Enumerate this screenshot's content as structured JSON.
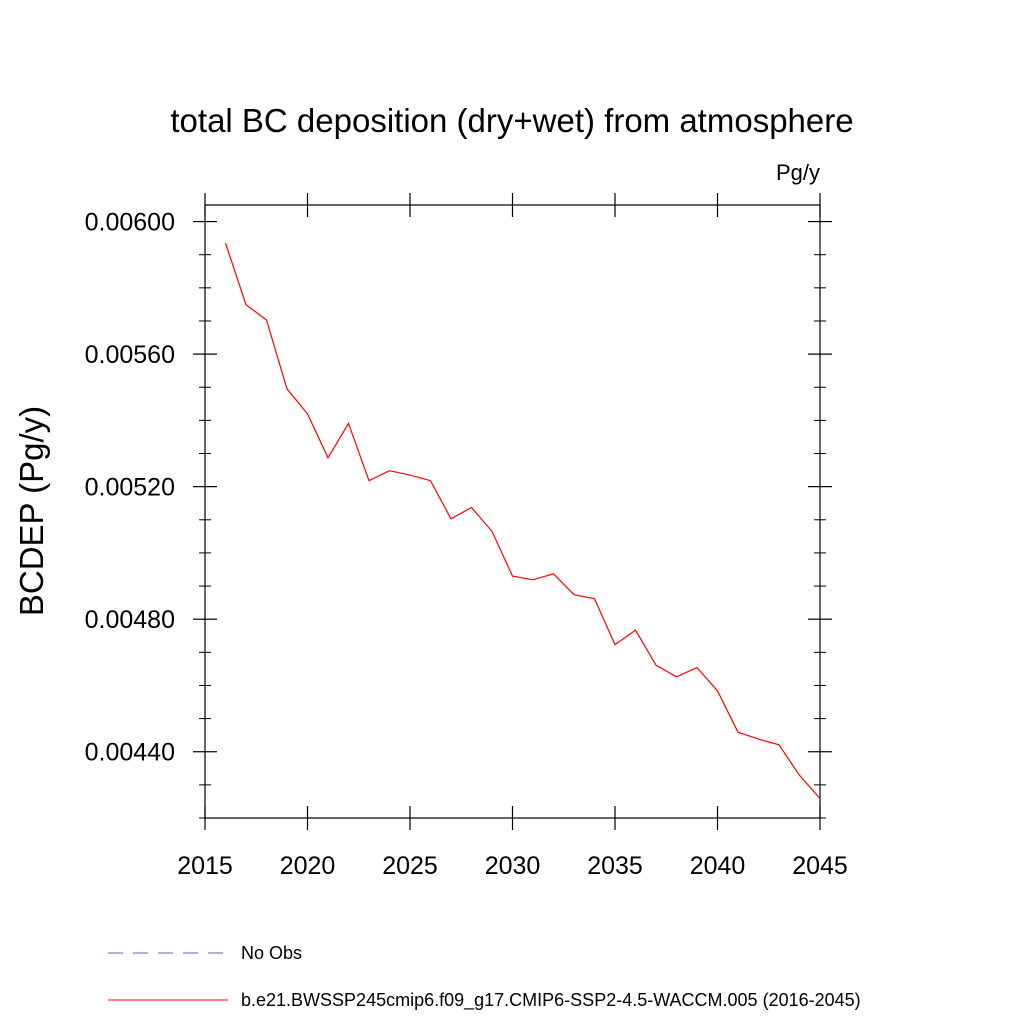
{
  "chart_data": {
    "type": "line",
    "title": "total BC deposition (dry+wet) from atmosphere",
    "units": "Pg/y",
    "xlabel": "",
    "ylabel": "BCDEP  (Pg/y)",
    "xlim": [
      2015,
      2045
    ],
    "ylim": [
      0.0042,
      0.00605
    ],
    "x_ticks": [
      2015,
      2020,
      2025,
      2030,
      2035,
      2040,
      2045
    ],
    "x_tick_labels": [
      "2015",
      "2020",
      "2025",
      "2030",
      "2035",
      "2040",
      "2045"
    ],
    "y_ticks": [
      0.0044,
      0.0048,
      0.0052,
      0.0056,
      0.006
    ],
    "y_tick_labels": [
      "0.00440",
      "0.00480",
      "0.00520",
      "0.00560",
      "0.00600"
    ],
    "grid": false,
    "legend_position": "bottom",
    "x": [
      2016,
      2017,
      2018,
      2019,
      2020,
      2021,
      2022,
      2023,
      2024,
      2025,
      2026,
      2027,
      2028,
      2029,
      2030,
      2031,
      2032,
      2033,
      2034,
      2035,
      2036,
      2037,
      2038,
      2039,
      2040,
      2041,
      2042,
      2043,
      2044,
      2045
    ],
    "series": [
      {
        "name": "b.e21.BWSSP245cmip6.f09_g17.CMIP6-SSP2-4.5-WACCM.005 (2016-2045)",
        "color": "#ff0000",
        "style": "solid",
        "values": [
          0.005935,
          0.005749,
          0.005703,
          0.005495,
          0.00542,
          0.005287,
          0.005391,
          0.005218,
          0.005248,
          0.005235,
          0.005218,
          0.005103,
          0.005137,
          0.005065,
          0.00493,
          0.004919,
          0.004937,
          0.004874,
          0.004862,
          0.004723,
          0.004767,
          0.004661,
          0.004626,
          0.004654,
          0.004584,
          0.004459,
          0.004438,
          0.004421,
          0.004329,
          0.004259
        ]
      }
    ],
    "legend": [
      {
        "label": "No Obs",
        "color": "#6a5acd",
        "style": "dashed"
      },
      {
        "label": "b.e21.BWSSP245cmip6.f09_g17.CMIP6-SSP2-4.5-WACCM.005 (2016-2045)",
        "color": "#ff0000",
        "style": "solid"
      }
    ]
  }
}
